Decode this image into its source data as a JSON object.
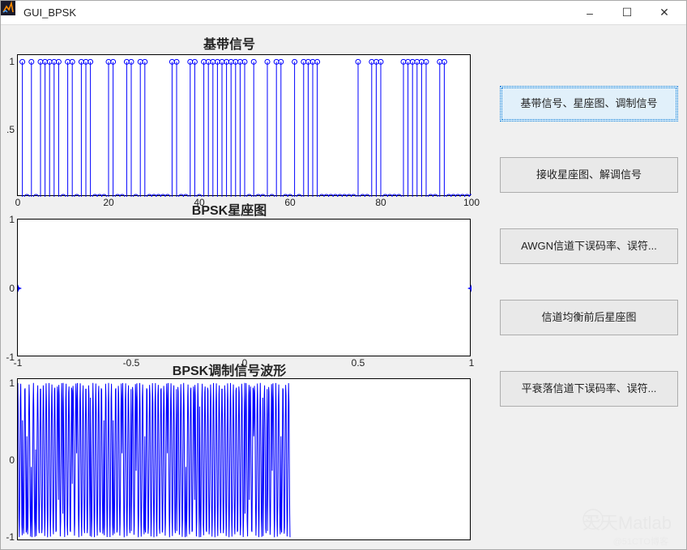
{
  "window": {
    "title": "GUI_BPSK",
    "min_label": "–",
    "max_label": "☐",
    "close_label": "✕"
  },
  "buttons": [
    {
      "label": "基带信号、星座图、调制信号",
      "primary": true
    },
    {
      "label": "接收星座图、解调信号",
      "primary": false
    },
    {
      "label": "AWGN信道下误码率、误符...",
      "primary": false
    },
    {
      "label": "信道均衡前后星座图",
      "primary": false
    },
    {
      "label": "平衰落信道下误码率、误符...",
      "primary": false
    }
  ],
  "baseband": {
    "type": "stem",
    "title": "基带信号",
    "title_fontsize": 16,
    "xlim": [
      0,
      100
    ],
    "ylim": [
      0,
      1.05
    ],
    "xticks": [
      0,
      20,
      40,
      60,
      80,
      100
    ],
    "yticks": [
      0.5,
      1
    ],
    "ytick_labels": [
      ".5",
      "1"
    ],
    "line_color": "#0000ff",
    "marker": "o",
    "marker_edge": "#0000ff",
    "marker_fill": "none",
    "marker_size": 6,
    "values": [
      1,
      0,
      1,
      0,
      1,
      1,
      1,
      1,
      1,
      0,
      1,
      1,
      0,
      1,
      1,
      1,
      0,
      0,
      0,
      1,
      1,
      0,
      0,
      1,
      1,
      0,
      1,
      1,
      0,
      0,
      0,
      0,
      0,
      1,
      1,
      0,
      0,
      1,
      1,
      0,
      1,
      1,
      1,
      1,
      1,
      1,
      1,
      1,
      1,
      1,
      0,
      1,
      0,
      0,
      1,
      0,
      1,
      1,
      0,
      0,
      1,
      0,
      1,
      1,
      1,
      1,
      0,
      0,
      0,
      0,
      0,
      0,
      0,
      0,
      1,
      0,
      0,
      1,
      1,
      1,
      0,
      0,
      0,
      0,
      1,
      1,
      1,
      1,
      1,
      1,
      0,
      0,
      1,
      1,
      0,
      0,
      0,
      0,
      0,
      0
    ]
  },
  "constellation": {
    "type": "scatter",
    "title": "BPSK星座图",
    "title_fontsize": 16,
    "xlim": [
      -1,
      1
    ],
    "ylim": [
      -1,
      1
    ],
    "xticks": [
      -1,
      -0.5,
      0,
      0.5,
      1
    ],
    "yticks": [
      -1,
      0,
      1
    ],
    "marker_color": "#0000ff",
    "marker_size": 7,
    "points": [
      {
        "x": -1,
        "y": 0
      },
      {
        "x": 1,
        "y": 0
      }
    ]
  },
  "modulated": {
    "type": "line",
    "title": "BPSK调制信号波形",
    "title_fontsize": 16,
    "xlim": [
      0,
      100
    ],
    "ylim": [
      -1.05,
      1.05
    ],
    "yticks": [
      -1,
      0,
      1
    ],
    "xticks": [],
    "line_color": "#0000ff",
    "line_width": 1,
    "samples_per_bit": 8,
    "bits_shown": 60
  },
  "colors": {
    "axes_bg": "#ffffff",
    "panel_bg": "#f0f0f0",
    "axis_line": "#000000",
    "text": "#222222",
    "button_bg": "#e9e9e9",
    "button_primary_bg": "#e1f0fa",
    "button_primary_border": "#0078d7"
  },
  "watermark": {
    "text": "天天Matlab",
    "subtext": "@51CTO博客"
  }
}
